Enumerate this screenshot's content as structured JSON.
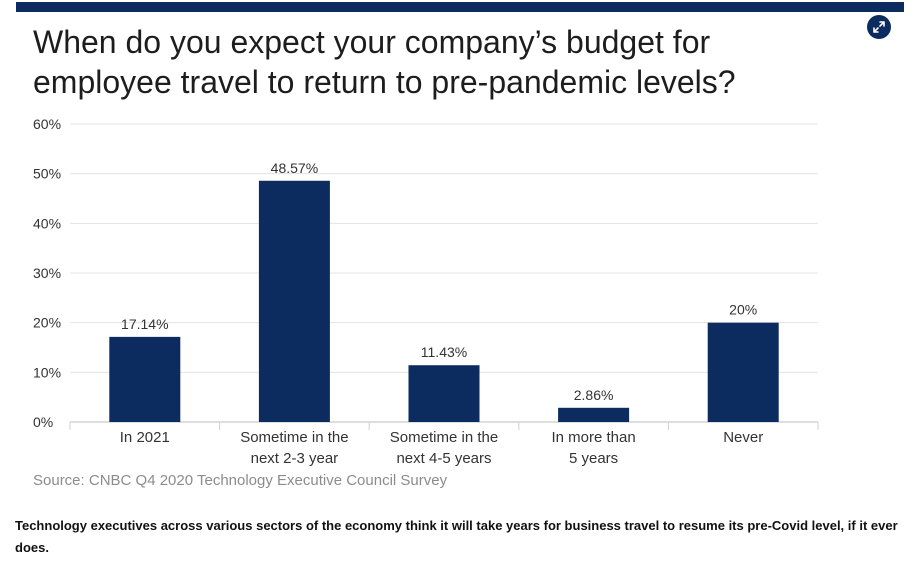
{
  "header": {
    "title_line1": "When do you expect your company’s budget for",
    "title_line2": "employee travel to return to pre-pandemic levels?"
  },
  "expand_icon": "expand-arrows-icon",
  "colors": {
    "bar": "#0c2b5e",
    "grid": "#e3e3e3",
    "topbar": "#0c2b5e"
  },
  "chart_data": {
    "type": "bar",
    "title": "When do you expect your company’s budget for employee travel to return to pre-pandemic levels?",
    "categories": [
      [
        "In 2021"
      ],
      [
        "Sometime in the",
        "next 2-3 year"
      ],
      [
        "Sometime in the",
        "next 4-5 years"
      ],
      [
        "In more than",
        "5 years"
      ],
      [
        "Never"
      ]
    ],
    "values": [
      17.14,
      48.57,
      11.43,
      2.86,
      20
    ],
    "data_labels": [
      "17.14%",
      "48.57%",
      "11.43%",
      "2.86%",
      "20%"
    ],
    "yticks": [
      "0%",
      "10%",
      "20%",
      "30%",
      "40%",
      "50%",
      "60%"
    ],
    "ylim": [
      0,
      60
    ],
    "grid": true,
    "xlabel": "",
    "ylabel": ""
  },
  "source": "Source: CNBC Q4 2020 Technology Executive Council Survey",
  "caption": "Technology executives across various sectors of the economy think it will take years for business travel to resume its pre-Covid level, if it ever does."
}
